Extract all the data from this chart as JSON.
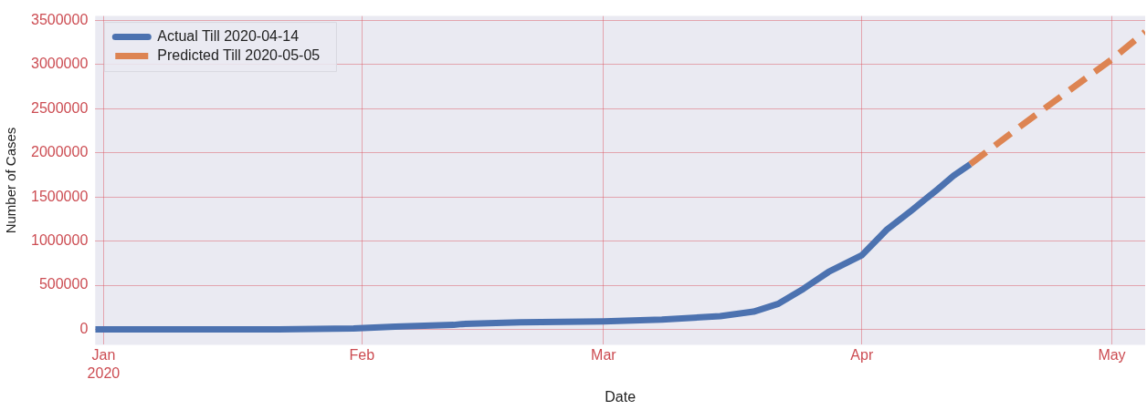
{
  "chart_data": {
    "type": "line",
    "xlabel": "Date",
    "ylabel": "Number of Cases",
    "xlim": [
      "2019-12-31",
      "2020-05-05"
    ],
    "xticks": [
      {
        "value": "2020-01-01",
        "label": "Jan 2020"
      },
      {
        "value": "2020-02-01",
        "label": "Feb"
      },
      {
        "value": "2020-03-01",
        "label": "Mar"
      },
      {
        "value": "2020-04-01",
        "label": "Apr"
      },
      {
        "value": "2020-05-01",
        "label": "May"
      }
    ],
    "ylim": [
      -175000,
      3550000
    ],
    "yticks": [
      0,
      500000,
      1000000,
      1500000,
      2000000,
      2500000,
      3000000,
      3500000
    ],
    "grid": true,
    "legend": "top left",
    "marker": "none",
    "series": [
      {
        "name": "Actual Till 2020-04-14",
        "color": "#4c72b0",
        "line_style": "solid",
        "x": [
          "2019-12-31",
          "2020-01-22",
          "2020-01-31",
          "2020-02-05",
          "2020-02-12",
          "2020-02-13",
          "2020-02-20",
          "2020-03-01",
          "2020-03-08",
          "2020-03-15",
          "2020-03-19",
          "2020-03-22",
          "2020-03-25",
          "2020-03-28",
          "2020-04-01",
          "2020-04-04",
          "2020-04-07",
          "2020-04-10",
          "2020-04-12",
          "2020-04-14"
        ],
        "values": [
          0,
          0,
          10000,
          30000,
          50000,
          60000,
          80000,
          90000,
          110000,
          150000,
          200000,
          290000,
          460000,
          650000,
          840000,
          1130000,
          1350000,
          1580000,
          1740000,
          1870000
        ]
      },
      {
        "name": "Predicted Till 2020-05-05",
        "color": "#dd8452",
        "line_style": "dashed",
        "x": [
          "2020-04-14",
          "2020-04-20",
          "2020-05-01",
          "2020-05-05"
        ],
        "values": [
          1870000,
          2300000,
          3060000,
          3370000
        ]
      }
    ]
  }
}
